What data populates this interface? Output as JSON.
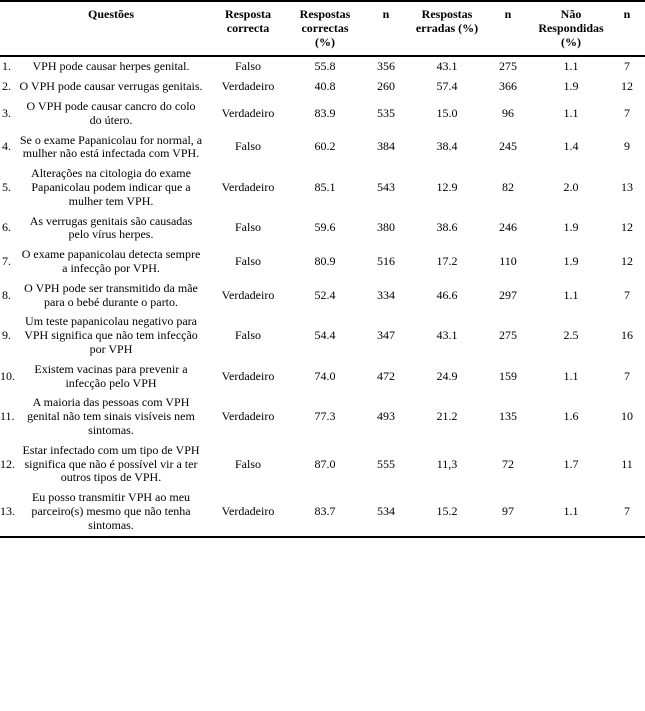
{
  "headers": {
    "questoes": "Questões",
    "resposta_correcta": "Resposta correcta",
    "respostas_correctas_pct": "Respostas correctas (%)",
    "n1": "n",
    "respostas_erradas_pct": "Respostas erradas (%)",
    "n2": "n",
    "nao_respondidas_pct": "Não Respondidas (%)",
    "n3": "n"
  },
  "rows": [
    {
      "num": "1.",
      "q": "VPH pode causar herpes genital.",
      "ans": "Falso",
      "pc": "55.8",
      "n1": "356",
      "pw": "43.1",
      "n2": "275",
      "nr": "1.1",
      "n3": "7"
    },
    {
      "num": "2.",
      "q": "O VPH pode causar verrugas genitais.",
      "ans": "Verdadeiro",
      "pc": "40.8",
      "n1": "260",
      "pw": "57.4",
      "n2": "366",
      "nr": "1.9",
      "n3": "12"
    },
    {
      "num": "3.",
      "q": "O VPH pode causar cancro do colo do útero.",
      "ans": "Verdadeiro",
      "pc": "83.9",
      "n1": "535",
      "pw": "15.0",
      "n2": "96",
      "nr": "1.1",
      "n3": "7"
    },
    {
      "num": "4.",
      "q": "Se o exame Papanicolau for normal, a mulher não está infectada com VPH.",
      "ans": "Falso",
      "pc": "60.2",
      "n1": "384",
      "pw": "38.4",
      "n2": "245",
      "nr": "1.4",
      "n3": "9"
    },
    {
      "num": "5.",
      "q": "Alterações na  citologia do exame Papanicolau podem indicar que a mulher tem VPH.",
      "ans": "Verdadeiro",
      "pc": "85.1",
      "n1": "543",
      "pw": "12.9",
      "n2": "82",
      "nr": "2.0",
      "n3": "13"
    },
    {
      "num": "6.",
      "q": "As verrugas genitais são causadas pelo vírus herpes.",
      "ans": "Falso",
      "pc": "59.6",
      "n1": "380",
      "pw": "38.6",
      "n2": "246",
      "nr": "1.9",
      "n3": "12"
    },
    {
      "num": "7.",
      "q": "O exame papanicolau detecta sempre a infecção por VPH.",
      "ans": "Falso",
      "pc": "80.9",
      "n1": "516",
      "pw": "17.2",
      "n2": "110",
      "nr": "1.9",
      "n3": "12"
    },
    {
      "num": "8.",
      "q": "O VPH pode ser transmitido da mãe para o bebé durante o parto.",
      "ans": "Verdadeiro",
      "pc": "52.4",
      "n1": "334",
      "pw": "46.6",
      "n2": "297",
      "nr": "1.1",
      "n3": "7"
    },
    {
      "num": "9.",
      "q": "Um teste papanicolau negativo para VPH significa que não tem infecção por VPH",
      "ans": "Falso",
      "pc": "54.4",
      "n1": "347",
      "pw": "43.1",
      "n2": "275",
      "nr": "2.5",
      "n3": "16"
    },
    {
      "num": "10.",
      "q": "Existem vacinas para prevenir a infecção pelo VPH",
      "ans": "Verdadeiro",
      "pc": "74.0",
      "n1": "472",
      "pw": "24.9",
      "n2": "159",
      "nr": "1.1",
      "n3": "7"
    },
    {
      "num": "11.",
      "q": "A maioria das pessoas com VPH genital não tem sinais visíveis nem sintomas.",
      "ans": "Verdadeiro",
      "pc": "77.3",
      "n1": "493",
      "pw": "21.2",
      "n2": "135",
      "nr": "1.6",
      "n3": "10"
    },
    {
      "num": "12.",
      "q": "Estar infectado com um tipo de VPH significa que não é possível vir a ter outros tipos de VPH.",
      "ans": "Falso",
      "pc": "87.0",
      "n1": "555",
      "pw": "11,3",
      "n2": "72",
      "nr": "1.7",
      "n3": "11"
    },
    {
      "num": "13.",
      "q": "Eu posso transmitir VPH ao meu parceiro(s) mesmo que não tenha sintomas.",
      "ans": "Verdadeiro",
      "pc": "83.7",
      "n1": "534",
      "pw": "15.2",
      "n2": "97",
      "nr": "1.1",
      "n3": "7"
    }
  ]
}
